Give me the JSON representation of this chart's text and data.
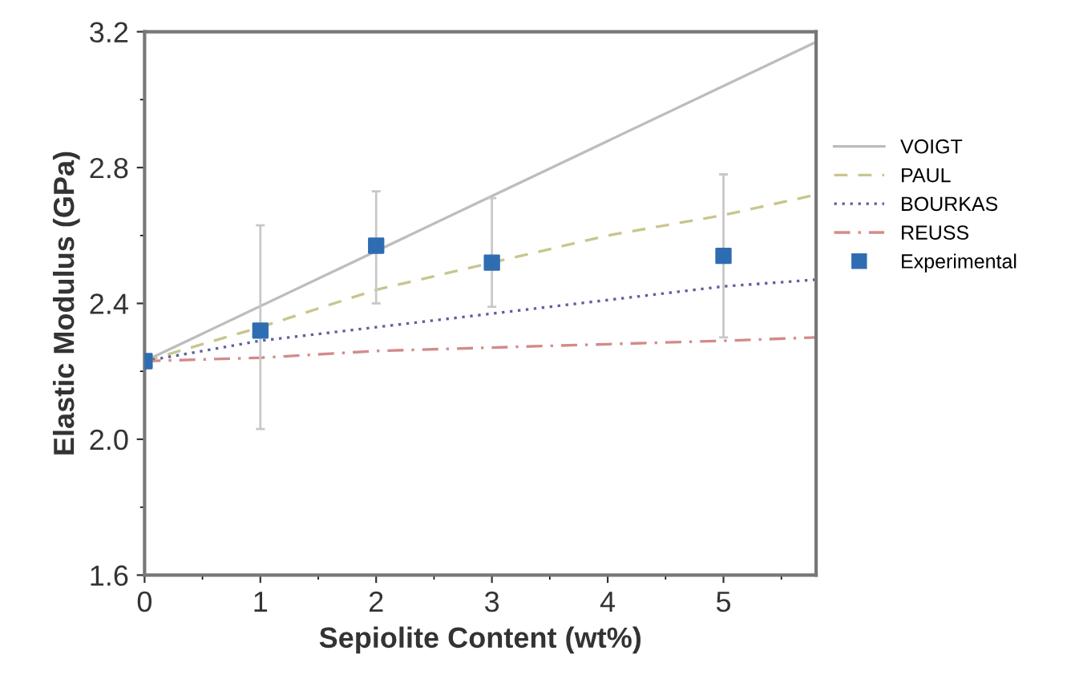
{
  "chart_data": {
    "type": "line",
    "xlabel": "Sepiolite Content (wt%)",
    "ylabel": "Elastic Modulus (GPa)",
    "xlim": [
      0,
      5.8
    ],
    "xticks": [
      0,
      1,
      2,
      3,
      4,
      5
    ],
    "ylim": [
      1.6,
      3.2
    ],
    "yticks": [
      1.6,
      {
        "value": 2,
        "label": "2.0"
      },
      2.4,
      2.8,
      3.2
    ],
    "grid": false,
    "legend": "right",
    "marker": "none",
    "series": [
      {
        "name": "VOIGT",
        "color": "#bdbdbd",
        "line_style": "solid",
        "x": [
          0,
          5.8
        ],
        "values": [
          2.23,
          3.17
        ]
      },
      {
        "name": "PAUL",
        "color": "#c9c58e",
        "line_style": "dashed",
        "x": [
          0,
          1,
          2,
          3,
          4,
          5,
          5.8
        ],
        "values": [
          2.23,
          2.33,
          2.44,
          2.52,
          2.6,
          2.66,
          2.72
        ]
      },
      {
        "name": "BOURKAS",
        "color": "#5f5f9f",
        "line_style": "dotted",
        "x": [
          0,
          1,
          2,
          3,
          4,
          5,
          5.8
        ],
        "values": [
          2.23,
          2.29,
          2.33,
          2.37,
          2.41,
          2.45,
          2.47
        ]
      },
      {
        "name": "REUSS",
        "color": "#d48a8a",
        "line_style": "dashdot",
        "x": [
          0,
          1,
          2,
          3,
          4,
          5,
          5.8
        ],
        "values": [
          2.23,
          2.24,
          2.26,
          2.27,
          2.28,
          2.29,
          2.3
        ]
      },
      {
        "name": "Experimental",
        "type": "scatter",
        "marker": "square",
        "color": "#2f6db3",
        "x": [
          0,
          1,
          2,
          3,
          5
        ],
        "values": [
          2.23,
          2.32,
          2.57,
          2.52,
          2.54
        ],
        "errors": [
          null,
          [
            2.03,
            2.63
          ],
          [
            2.4,
            2.73
          ],
          [
            2.39,
            2.71
          ],
          [
            2.3,
            2.78
          ]
        ]
      }
    ]
  }
}
